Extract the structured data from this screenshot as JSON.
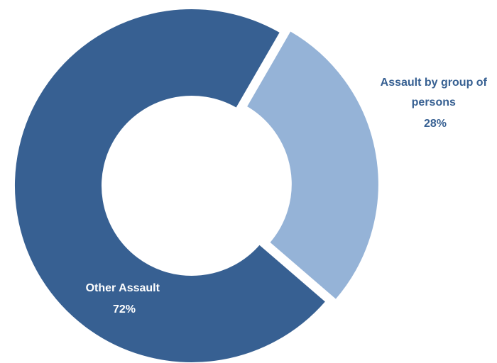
{
  "chart_data": {
    "type": "pie",
    "variant": "donut",
    "title": "",
    "slices": [
      {
        "label_lines": [
          "Assault by group of",
          "persons"
        ],
        "value": 28,
        "percent_label": "28%",
        "color": "#95b3d7",
        "exploded": true
      },
      {
        "label_lines": [
          "Other Assault"
        ],
        "value": 72,
        "percent_label": "72%",
        "color": "#376092",
        "exploded": false
      }
    ],
    "label_colors": {
      "inside": "#ffffff",
      "outside": "#376092"
    }
  }
}
